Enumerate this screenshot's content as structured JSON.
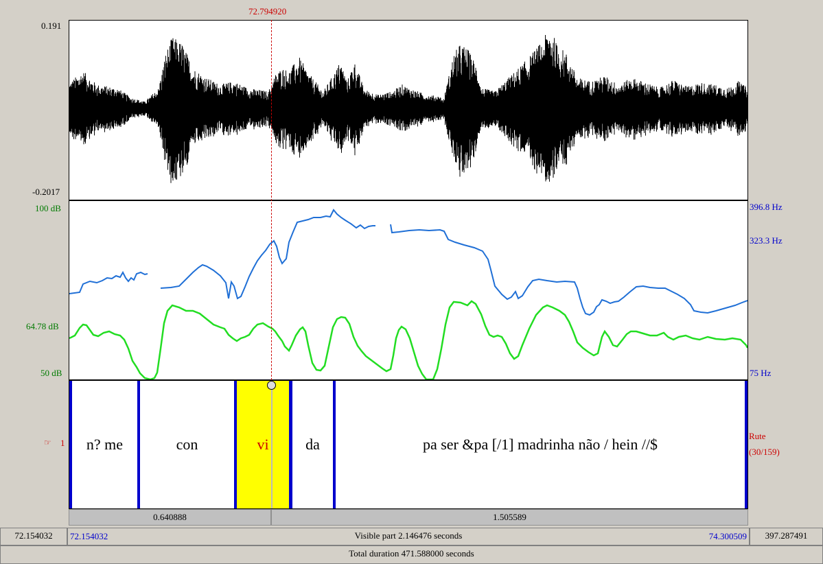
{
  "cursor": {
    "time": "72.794920"
  },
  "waveform": {
    "max_label": "0.191",
    "min_label": "-0.2017"
  },
  "pitch_panel": {
    "db_top": "100 dB",
    "db_mid": "64.78 dB",
    "db_bottom": "50 dB",
    "hz_top": "396.8 Hz",
    "hz_mid": "323.3 Hz",
    "hz_bottom": "75 Hz",
    "pitch_color": "#1f6fd6",
    "intensity_color": "#22dd22"
  },
  "tier": {
    "number": "1",
    "pointer_icon": "pointing-hand-icon",
    "name": "Rute",
    "count": "(30/159)",
    "intervals": [
      {
        "text": "n? me"
      },
      {
        "text": "con"
      },
      {
        "text": "vi",
        "selected": true
      },
      {
        "text": "da"
      },
      {
        "text": "pa ser &pa [/1] madrinha não / hein //$"
      }
    ]
  },
  "selection_bar": {
    "left_duration": "0.640888",
    "right_duration": "1.505589"
  },
  "visible_bar": {
    "window_start": "72.154032",
    "visible_start": "72.154032",
    "visible_label": "Visible part 2.146476 seconds",
    "visible_end": "74.300509",
    "window_end": "397.287491"
  },
  "total_bar": {
    "label": "Total duration 471.588000 seconds"
  }
}
